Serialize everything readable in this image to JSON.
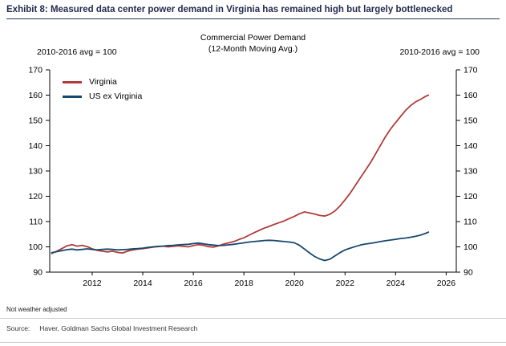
{
  "exhibit": {
    "title": "Exhibit 8: Measured data center power demand in Virginia has remained high but largely bottlenecked",
    "footnote": "Not weather adjusted",
    "source_label": "Source:",
    "source_text": "Haver, Goldman Sachs Global Investment Research"
  },
  "chart_data": {
    "type": "line",
    "title_line1": "Commercial Power Demand",
    "title_line2": "(12-Month Moving Avg.)",
    "left_axis_label": "2010-2016 avg = 100",
    "right_axis_label": "2010-2016 avg = 100",
    "grid": false,
    "legend_position": "top-left",
    "xlim": [
      2010.32,
      2026.4
    ],
    "ylim": [
      90,
      170
    ],
    "yticks": [
      90,
      100,
      110,
      120,
      130,
      140,
      150,
      160,
      170
    ],
    "xticks": [
      2012,
      2014,
      2016,
      2018,
      2020,
      2022,
      2024,
      2026
    ],
    "series": [
      {
        "name": "Virginia",
        "color": "#b13c3a",
        "points": [
          [
            2010.4,
            97.4
          ],
          [
            2010.6,
            98.3
          ],
          [
            2010.8,
            99.3
          ],
          [
            2011.0,
            100.4
          ],
          [
            2011.2,
            100.9
          ],
          [
            2011.4,
            100.3
          ],
          [
            2011.6,
            100.6
          ],
          [
            2011.8,
            100.1
          ],
          [
            2012.0,
            99.2
          ],
          [
            2012.2,
            98.6
          ],
          [
            2012.4,
            98.3
          ],
          [
            2012.6,
            98.0
          ],
          [
            2012.8,
            98.3
          ],
          [
            2013.0,
            97.8
          ],
          [
            2013.2,
            97.6
          ],
          [
            2013.4,
            98.3
          ],
          [
            2013.6,
            98.8
          ],
          [
            2013.8,
            99.1
          ],
          [
            2014.0,
            99.3
          ],
          [
            2014.2,
            99.6
          ],
          [
            2014.4,
            99.9
          ],
          [
            2014.6,
            100.1
          ],
          [
            2014.8,
            100.3
          ],
          [
            2015.0,
            100.0
          ],
          [
            2015.2,
            100.2
          ],
          [
            2015.4,
            100.4
          ],
          [
            2015.6,
            100.2
          ],
          [
            2015.8,
            100.0
          ],
          [
            2016.0,
            100.5
          ],
          [
            2016.2,
            100.9
          ],
          [
            2016.4,
            100.6
          ],
          [
            2016.6,
            100.1
          ],
          [
            2016.8,
            99.9
          ],
          [
            2017.0,
            100.4
          ],
          [
            2017.2,
            101.1
          ],
          [
            2017.4,
            101.6
          ],
          [
            2017.6,
            102.1
          ],
          [
            2017.8,
            102.9
          ],
          [
            2018.0,
            103.6
          ],
          [
            2018.2,
            104.6
          ],
          [
            2018.4,
            105.6
          ],
          [
            2018.6,
            106.5
          ],
          [
            2018.8,
            107.4
          ],
          [
            2019.0,
            108.1
          ],
          [
            2019.2,
            108.9
          ],
          [
            2019.4,
            109.6
          ],
          [
            2019.6,
            110.3
          ],
          [
            2019.8,
            111.2
          ],
          [
            2020.0,
            112.1
          ],
          [
            2020.2,
            113.1
          ],
          [
            2020.4,
            113.8
          ],
          [
            2020.6,
            113.4
          ],
          [
            2020.8,
            113.0
          ],
          [
            2021.0,
            112.4
          ],
          [
            2021.2,
            112.2
          ],
          [
            2021.4,
            112.9
          ],
          [
            2021.6,
            114.2
          ],
          [
            2021.8,
            116.2
          ],
          [
            2022.0,
            118.6
          ],
          [
            2022.2,
            121.2
          ],
          [
            2022.4,
            124.2
          ],
          [
            2022.6,
            127.2
          ],
          [
            2022.8,
            130.2
          ],
          [
            2023.0,
            133.2
          ],
          [
            2023.2,
            136.6
          ],
          [
            2023.4,
            140.1
          ],
          [
            2023.6,
            143.6
          ],
          [
            2023.8,
            146.6
          ],
          [
            2024.0,
            149.1
          ],
          [
            2024.2,
            151.6
          ],
          [
            2024.4,
            154.0
          ],
          [
            2024.6,
            155.9
          ],
          [
            2024.8,
            157.4
          ],
          [
            2025.0,
            158.4
          ],
          [
            2025.1,
            159.0
          ],
          [
            2025.2,
            159.6
          ],
          [
            2025.3,
            160.0
          ]
        ]
      },
      {
        "name": "US ex Virginia",
        "color": "#17486e",
        "points": [
          [
            2010.4,
            97.7
          ],
          [
            2010.6,
            98.1
          ],
          [
            2010.8,
            98.5
          ],
          [
            2011.0,
            98.9
          ],
          [
            2011.2,
            99.1
          ],
          [
            2011.4,
            98.8
          ],
          [
            2011.6,
            99.0
          ],
          [
            2011.8,
            99.2
          ],
          [
            2012.0,
            99.0
          ],
          [
            2012.2,
            98.8
          ],
          [
            2012.4,
            99.0
          ],
          [
            2012.6,
            99.1
          ],
          [
            2012.8,
            99.0
          ],
          [
            2013.0,
            98.8
          ],
          [
            2013.2,
            98.9
          ],
          [
            2013.4,
            99.0
          ],
          [
            2013.6,
            99.2
          ],
          [
            2013.8,
            99.3
          ],
          [
            2014.0,
            99.5
          ],
          [
            2014.2,
            99.8
          ],
          [
            2014.4,
            100.0
          ],
          [
            2014.6,
            100.2
          ],
          [
            2014.8,
            100.3
          ],
          [
            2015.0,
            100.5
          ],
          [
            2015.2,
            100.6
          ],
          [
            2015.4,
            100.8
          ],
          [
            2015.6,
            100.9
          ],
          [
            2015.8,
            101.0
          ],
          [
            2016.0,
            101.3
          ],
          [
            2016.2,
            101.5
          ],
          [
            2016.4,
            101.2
          ],
          [
            2016.6,
            100.9
          ],
          [
            2016.8,
            100.7
          ],
          [
            2017.0,
            100.5
          ],
          [
            2017.2,
            100.6
          ],
          [
            2017.4,
            100.8
          ],
          [
            2017.6,
            101.0
          ],
          [
            2017.8,
            101.3
          ],
          [
            2018.0,
            101.6
          ],
          [
            2018.2,
            101.9
          ],
          [
            2018.4,
            102.1
          ],
          [
            2018.6,
            102.3
          ],
          [
            2018.8,
            102.5
          ],
          [
            2019.0,
            102.6
          ],
          [
            2019.2,
            102.5
          ],
          [
            2019.4,
            102.3
          ],
          [
            2019.6,
            102.1
          ],
          [
            2019.8,
            101.9
          ],
          [
            2020.0,
            101.6
          ],
          [
            2020.2,
            100.6
          ],
          [
            2020.4,
            99.1
          ],
          [
            2020.6,
            97.6
          ],
          [
            2020.8,
            96.2
          ],
          [
            2021.0,
            95.2
          ],
          [
            2021.2,
            94.6
          ],
          [
            2021.4,
            95.1
          ],
          [
            2021.6,
            96.4
          ],
          [
            2021.8,
            97.7
          ],
          [
            2022.0,
            98.8
          ],
          [
            2022.2,
            99.5
          ],
          [
            2022.4,
            100.1
          ],
          [
            2022.6,
            100.7
          ],
          [
            2022.8,
            101.1
          ],
          [
            2023.0,
            101.4
          ],
          [
            2023.2,
            101.7
          ],
          [
            2023.4,
            102.1
          ],
          [
            2023.6,
            102.4
          ],
          [
            2023.8,
            102.7
          ],
          [
            2024.0,
            103.0
          ],
          [
            2024.2,
            103.3
          ],
          [
            2024.4,
            103.5
          ],
          [
            2024.6,
            103.8
          ],
          [
            2024.8,
            104.2
          ],
          [
            2025.0,
            104.7
          ],
          [
            2025.2,
            105.4
          ],
          [
            2025.3,
            105.8
          ]
        ]
      }
    ]
  }
}
